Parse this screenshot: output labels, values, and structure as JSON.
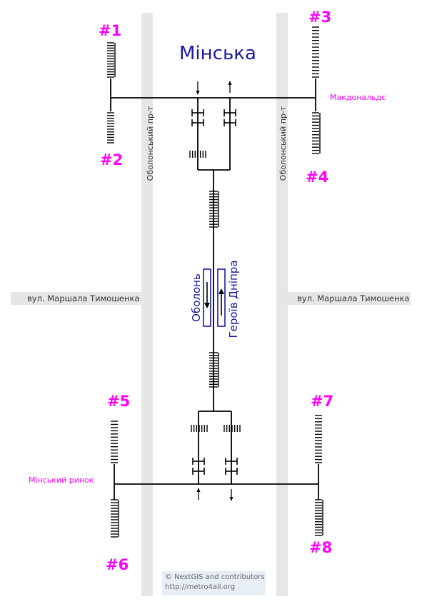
{
  "station": {
    "title": "Мінська"
  },
  "directions": {
    "left": "Оболонь",
    "right": "Героїв Дніпра"
  },
  "streets": {
    "avenue_left": "Оболонський пр-т",
    "avenue_right": "Оболонський пр-т",
    "street_left": "вул. Маршала Тимошенка",
    "street_right": "вул. Маршала Тимошенка"
  },
  "landmarks": {
    "mcdonalds": "Макдональдс",
    "market": "Мінський ринок"
  },
  "exits": [
    "#1",
    "#2",
    "#3",
    "#4",
    "#5",
    "#6",
    "#7",
    "#8"
  ],
  "credits": {
    "line1": "© NextGIS and contributors",
    "line2": "http://metro4all.org"
  },
  "colors": {
    "accent": "#ff00ff",
    "station": "#1a1aa0",
    "street_band": "#e6e6e6",
    "line": "#000000"
  }
}
